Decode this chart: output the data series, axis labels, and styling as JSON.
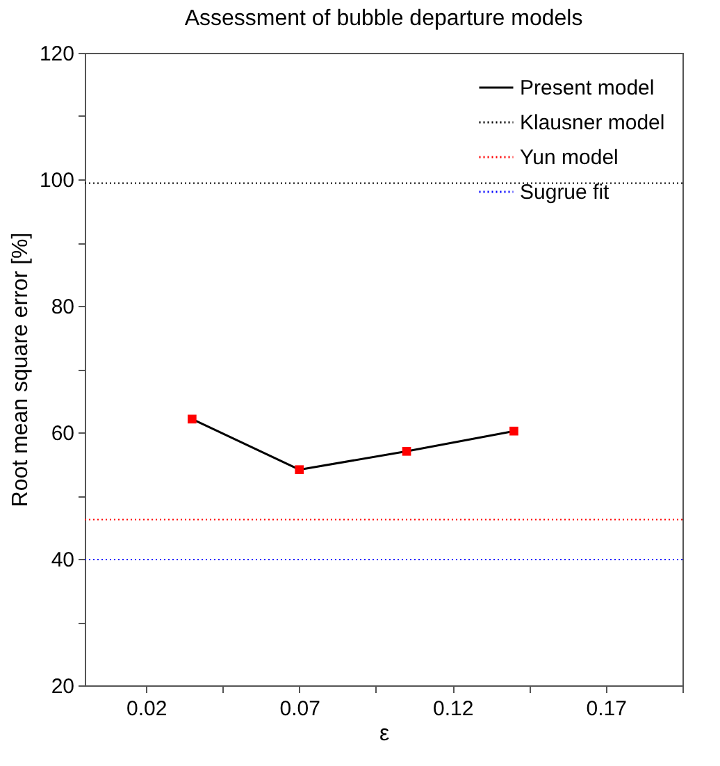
{
  "chart_data": {
    "type": "line",
    "title": "Assessment of bubble departure models",
    "xlabel": "ε",
    "ylabel": "Root mean square error [%]",
    "x": [
      0.035,
      0.07,
      0.105,
      0.14
    ],
    "series": [
      {
        "name": "Present model",
        "color": "#000000",
        "colors": [
          "#ff0000",
          "#ff0000",
          "#ff0000",
          "#ff0000"
        ],
        "values": [
          62.1,
          54.1,
          57.0,
          60.2
        ]
      }
    ],
    "ref_lines": [
      {
        "axis": "y",
        "value": 99.4,
        "label": "Klausner model",
        "color": "#000000",
        "line_style": "dotted"
      },
      {
        "axis": "y",
        "value": 46.2,
        "label": "Yun model",
        "color": "#ff0000",
        "line_style": "dotted"
      },
      {
        "axis": "y",
        "value": 39.9,
        "label": "Sugrue fit",
        "color": "#0000ff",
        "line_style": "dotted"
      }
    ],
    "xlim": [
      0,
      0.195
    ],
    "xticks": [
      0.02,
      {
        "value": 0.045,
        "label": null
      },
      0.07,
      {
        "value": 0.095,
        "label": null
      },
      0.12,
      {
        "value": 0.145,
        "label": null
      },
      0.17,
      {
        "value": 0.195,
        "label": null
      }
    ],
    "ylim": [
      20,
      120
    ],
    "yticks": [
      20,
      {
        "value": 30,
        "label": null
      },
      40,
      {
        "value": 50,
        "label": null
      },
      60,
      {
        "value": 70,
        "label": null
      },
      80,
      {
        "value": 90,
        "label": null
      },
      100,
      {
        "value": 110,
        "label": null
      },
      120
    ],
    "marker": "square",
    "line_style": "solid",
    "grid": false,
    "legend": "top right"
  }
}
